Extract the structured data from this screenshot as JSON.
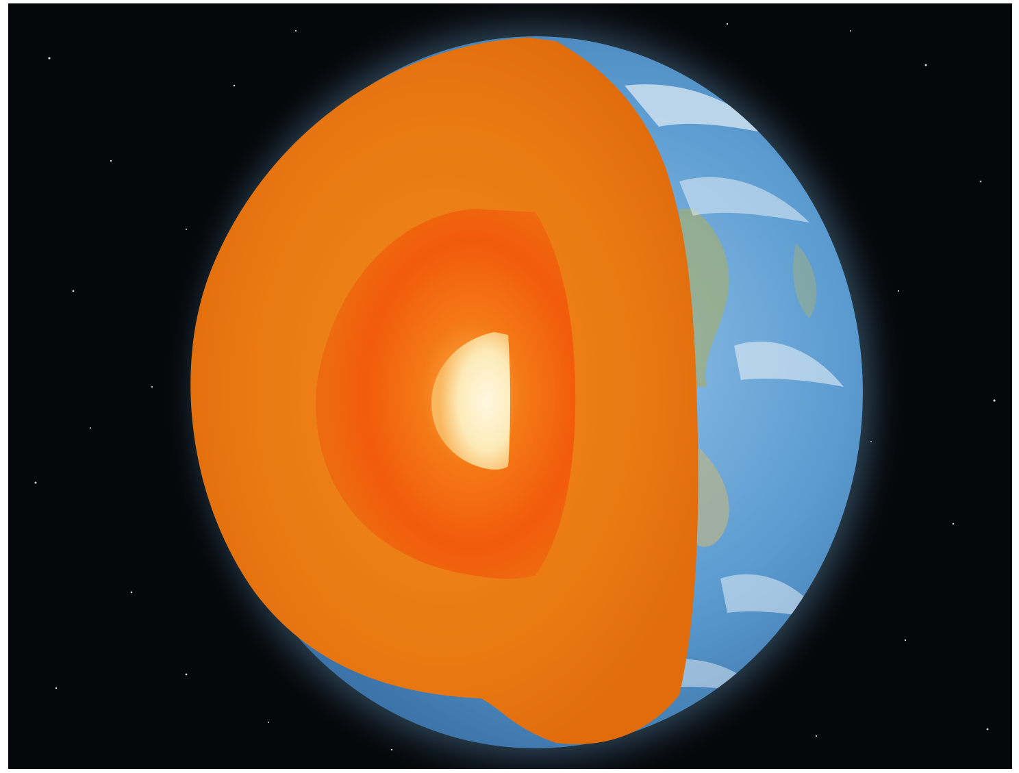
{
  "image": {
    "subject": "earth-cutaway",
    "colors": {
      "space": "#05070a",
      "frame": "#ffffff",
      "atmosphere_glow": "#8fc4e8",
      "ocean": "#4f90c6",
      "ocean_light": "#8fc0e6",
      "land": "#9fae7c",
      "cloud": "#e4eef6",
      "crust_mantle": "#e8770f",
      "mantle_inner": "#ee7a14",
      "outer_core": "#f25a0c",
      "inner_core": "#fdf0c8"
    }
  }
}
